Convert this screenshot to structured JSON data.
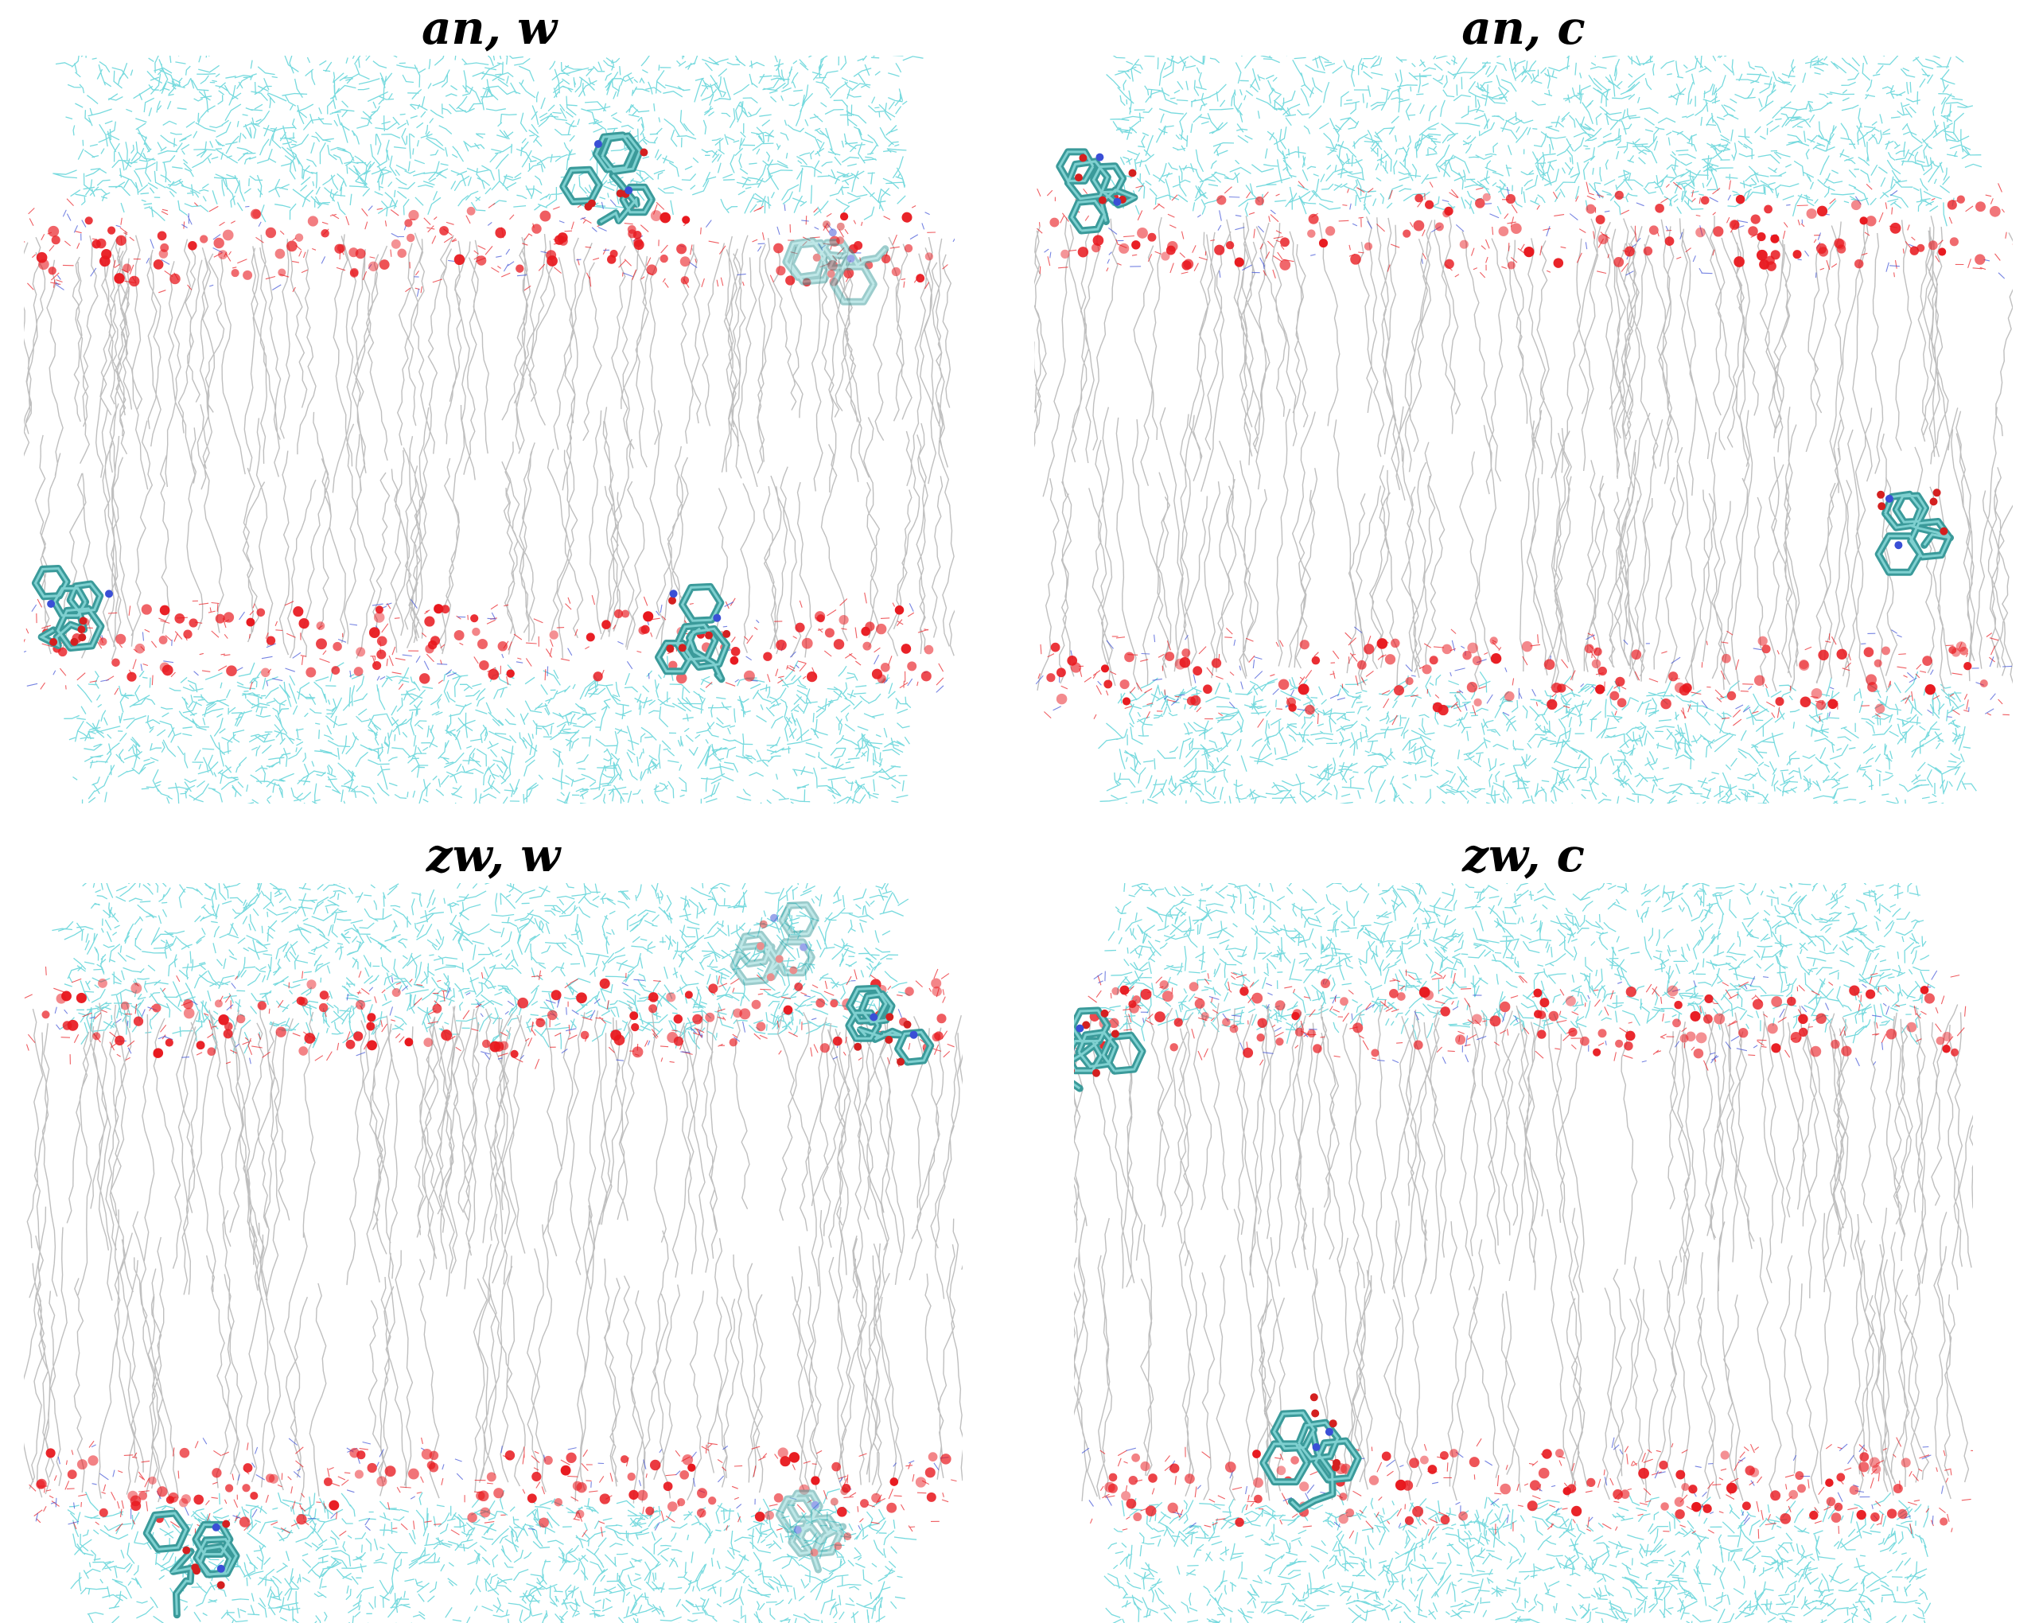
{
  "panels": [
    {
      "id": "an-w",
      "title": "an, w"
    },
    {
      "id": "an-c",
      "title": "an, c"
    },
    {
      "id": "zw-w",
      "title": "zw, w"
    },
    {
      "id": "zw-c",
      "title": "zw, c"
    }
  ],
  "colors": {
    "water": "#5fd3d8",
    "lipid": "#b8b8b8",
    "phosphate": "#e8181e",
    "nitrogen": "#3a4fd6",
    "molecule": "#3a9a9a",
    "oxygen_atom": "#d42020"
  }
}
